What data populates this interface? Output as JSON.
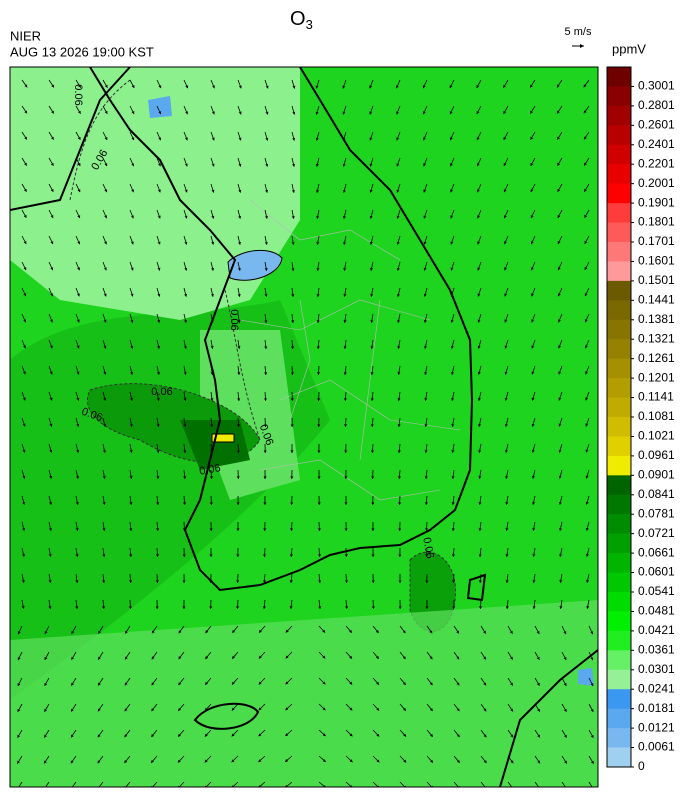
{
  "header": {
    "agency": "NIER",
    "datetime": "AUG 13 2026 19:00 KST",
    "species": "O",
    "species_subscript": "3",
    "wind_scale": "5 m/s"
  },
  "colorbar": {
    "unit": "ppmV",
    "levels": [
      0.3001,
      0.2801,
      0.2601,
      0.2401,
      0.2201,
      0.2001,
      0.1901,
      0.1801,
      0.1701,
      0.1601,
      0.1501,
      0.1441,
      0.1381,
      0.1321,
      0.1261,
      0.1201,
      0.1141,
      0.1081,
      0.1021,
      0.0961,
      0.0901,
      0.0841,
      0.0781,
      0.0721,
      0.0661,
      0.0601,
      0.0541,
      0.0481,
      0.0421,
      0.0361,
      0.0301,
      0.0241,
      0.0181,
      0.0121,
      0.0061,
      0
    ],
    "colors": [
      "#6e0000",
      "#8a0000",
      "#a00000",
      "#b80000",
      "#d00000",
      "#e80000",
      "#ff0000",
      "#ff3c3c",
      "#ff5a5a",
      "#ff7878",
      "#ff9a9a",
      "#6b5a00",
      "#7a6800",
      "#887400",
      "#968200",
      "#a49000",
      "#b29e00",
      "#c0ac00",
      "#d0bc00",
      "#e0d000",
      "#f0ec00",
      "#006400",
      "#007800",
      "#008c00",
      "#00a000",
      "#00b400",
      "#00c800",
      "#00dc00",
      "#00f000",
      "#20ee20",
      "#66f066",
      "#96f096",
      "#3a98f0",
      "#5aa8ee",
      "#78b8ee",
      "#a0d0f0"
    ]
  },
  "contour_labels": [
    "0.06",
    "0.06",
    "0.06",
    "0.06",
    "0.06",
    "0.06",
    "0.06",
    "0.06"
  ]
}
